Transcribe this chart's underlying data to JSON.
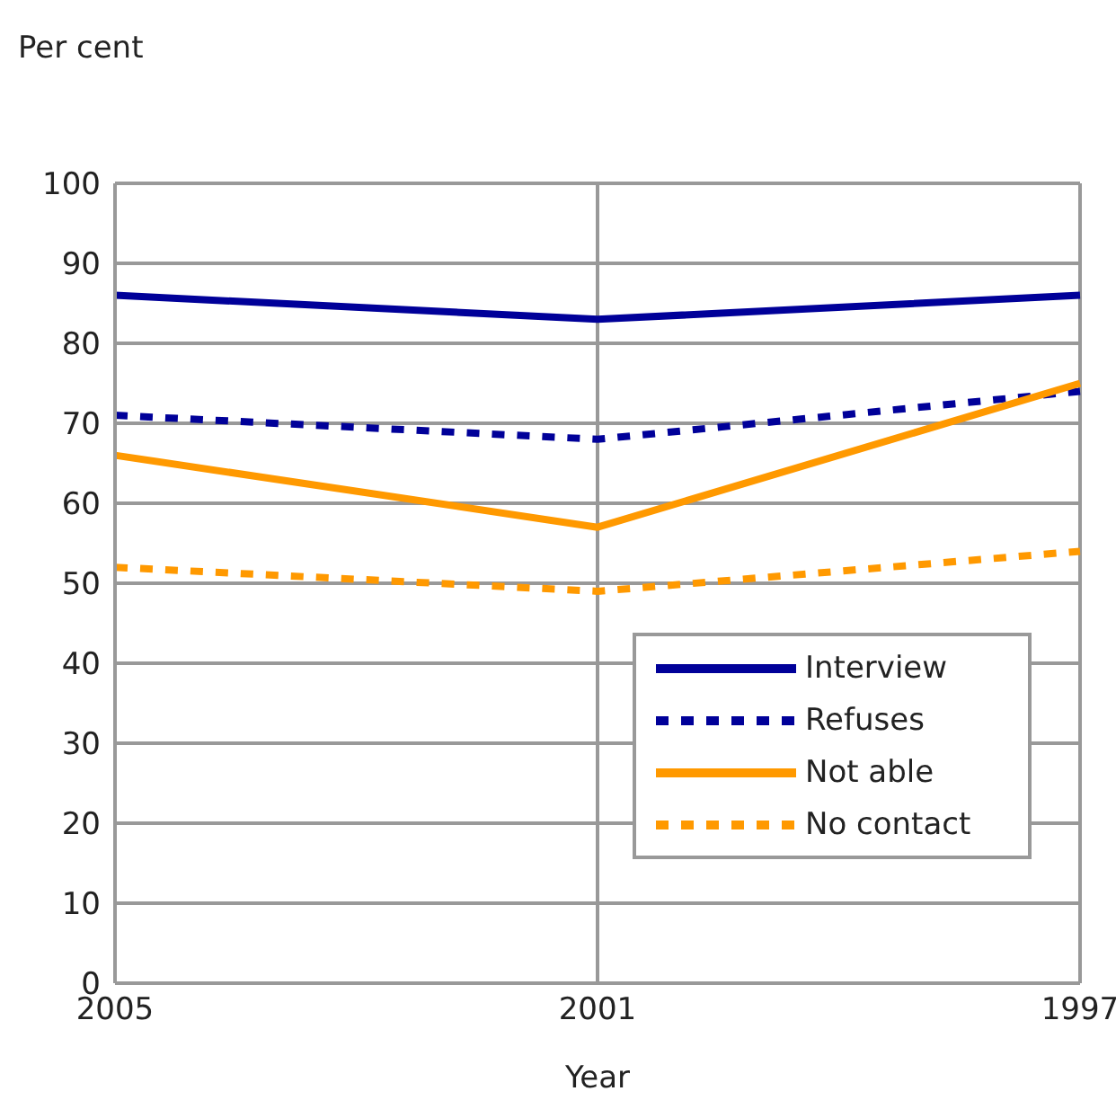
{
  "chart_data": {
    "type": "line",
    "ylabel": "Per cent",
    "xlabel": "Year",
    "categories": [
      "2005",
      "2001",
      "1997"
    ],
    "ylim": [
      0,
      100
    ],
    "yticks": [
      0,
      10,
      20,
      30,
      40,
      50,
      60,
      70,
      80,
      90,
      100
    ],
    "grid": true,
    "legend": "bottom right",
    "marker": "none",
    "series": [
      {
        "name": "Interview",
        "color": "#000099",
        "line_style": "solid",
        "values": [
          86,
          83,
          86
        ]
      },
      {
        "name": "Refuses",
        "color": "#000099",
        "line_style": "dashed",
        "values": [
          71,
          68,
          74
        ]
      },
      {
        "name": "Not able",
        "color": "#ff9900",
        "line_style": "solid",
        "values": [
          66,
          57,
          75
        ]
      },
      {
        "name": "No contact",
        "color": "#ff9900",
        "line_style": "dashed",
        "values": [
          52,
          49,
          54
        ]
      }
    ]
  }
}
